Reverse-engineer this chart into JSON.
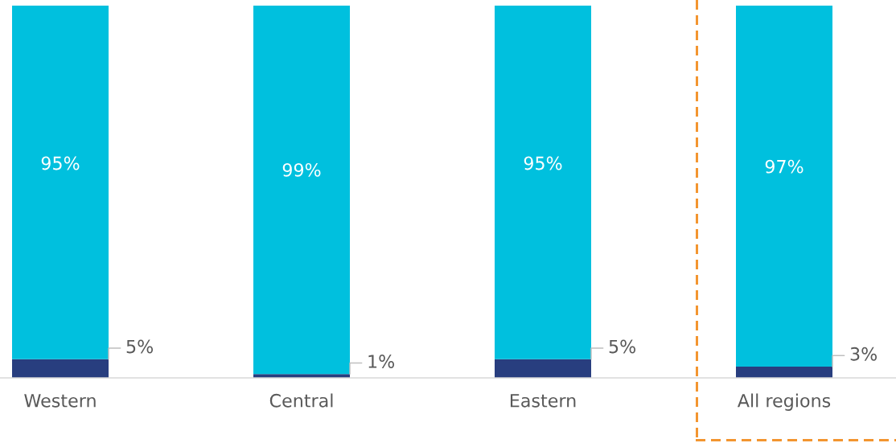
{
  "chart_data": {
    "type": "bar",
    "stacked": true,
    "categories": [
      "Western",
      "Central",
      "Eastern",
      "All regions"
    ],
    "series": [
      {
        "color": "#283e7f",
        "values": [
          5,
          1,
          5,
          3
        ],
        "value_labels": [
          "5%",
          "1%",
          "5%",
          "3%"
        ]
      },
      {
        "color": "#00c0de",
        "values": [
          95,
          99,
          95,
          97
        ],
        "value_labels": [
          "95%",
          "99%",
          "95%",
          "97%"
        ]
      }
    ],
    "ylim": [
      0,
      100
    ],
    "tick_labels": "x",
    "grid": false,
    "legend": false
  }
}
